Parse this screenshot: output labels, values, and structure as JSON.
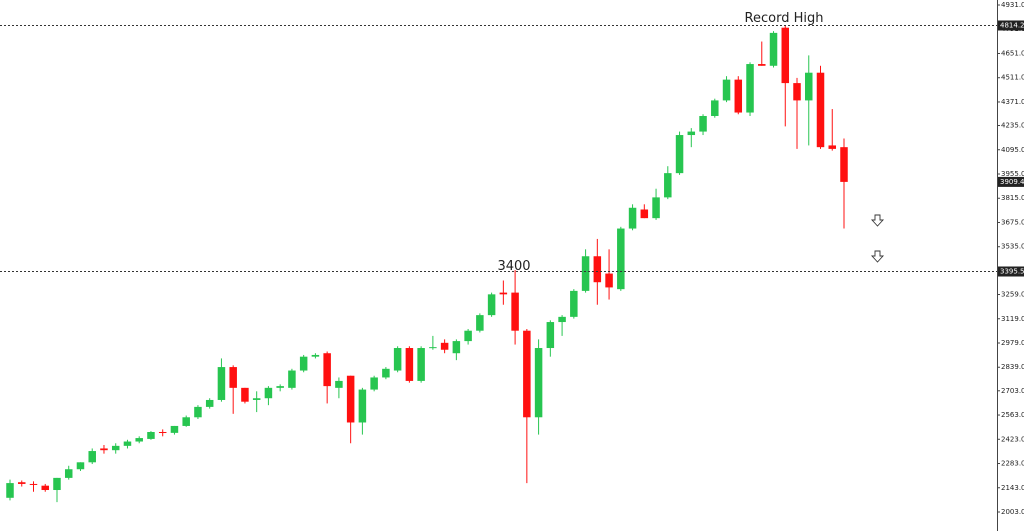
{
  "chart_data": {
    "type": "candlestick",
    "up_color": "#27c550",
    "down_color": "#ff1010",
    "ylim": [
      2003,
      4931
    ],
    "yticks": [
      {
        "value": 2003,
        "label": "2003.0"
      },
      {
        "value": 2143,
        "label": "2143.0"
      },
      {
        "value": 2283,
        "label": "2283.0"
      },
      {
        "value": 2423,
        "label": "2423.0"
      },
      {
        "value": 2563,
        "label": "2563.0"
      },
      {
        "value": 2703,
        "label": "2703.0"
      },
      {
        "value": 2839,
        "label": "2839.0"
      },
      {
        "value": 2979,
        "label": "2979.0"
      },
      {
        "value": 3119,
        "label": "3119.0"
      },
      {
        "value": 3259,
        "label": "3259.0"
      },
      {
        "value": 3535,
        "label": "3535.0"
      },
      {
        "value": 3675,
        "label": "3675.0"
      },
      {
        "value": 3815,
        "label": "3815.0"
      },
      {
        "value": 3955,
        "label": "3955.0"
      },
      {
        "value": 4095,
        "label": "4095.0"
      },
      {
        "value": 4235,
        "label": "4235.0"
      },
      {
        "value": 4371,
        "label": "4371.0"
      },
      {
        "value": 4511,
        "label": "4511.0"
      },
      {
        "value": 4651,
        "label": "4651.0"
      },
      {
        "value": 4791,
        "label": "4791.0"
      },
      {
        "value": 4931,
        "label": "4931.0"
      }
    ],
    "levels": [
      4814.2,
      3395.5
    ],
    "last_price": 3909.4,
    "annotations": [
      "Record High",
      "3400"
    ],
    "open": [
      2085,
      2175,
      2165,
      2155,
      2130,
      2200,
      2250,
      2290,
      2370,
      2360,
      2385,
      2410,
      2425,
      2465,
      2460,
      2500,
      2550,
      2610,
      2650,
      2840,
      2720,
      2650,
      2660,
      2720,
      2720,
      2820,
      2900,
      2920,
      2720,
      2790,
      2520,
      2710,
      2780,
      2820,
      2950,
      2760,
      2950,
      2980,
      2920,
      2990,
      3050,
      3140,
      3270,
      3270,
      3050,
      2550,
      2950,
      3100,
      3130,
      3280,
      3480,
      3380,
      3290,
      3640,
      3750,
      3700,
      3820,
      3960,
      4180,
      4200,
      4290,
      4380,
      4500,
      4310,
      4590,
      4580,
      4800,
      4480,
      4380,
      4540,
      4120,
      4110
    ],
    "high": [
      2190,
      2185,
      2180,
      2165,
      2200,
      2270,
      2290,
      2370,
      2390,
      2400,
      2420,
      2440,
      2470,
      2480,
      2500,
      2560,
      2620,
      2660,
      2890,
      2850,
      2720,
      2700,
      2730,
      2740,
      2830,
      2910,
      2920,
      2930,
      2780,
      2790,
      2720,
      2790,
      2840,
      2960,
      2960,
      2960,
      3020,
      3000,
      3000,
      3060,
      3150,
      3270,
      3340,
      3400,
      3060,
      3000,
      3110,
      3140,
      3290,
      3520,
      3580,
      3520,
      3650,
      3780,
      3780,
      3870,
      4000,
      4200,
      4220,
      4300,
      4390,
      4520,
      4520,
      4600,
      4720,
      4780,
      4814.2,
      4510,
      4640,
      4580,
      4330,
      4160
    ],
    "low": [
      2070,
      2150,
      2120,
      2120,
      2060,
      2190,
      2240,
      2280,
      2340,
      2340,
      2370,
      2400,
      2420,
      2440,
      2450,
      2495,
      2540,
      2600,
      2640,
      2570,
      2630,
      2580,
      2620,
      2700,
      2710,
      2810,
      2890,
      2630,
      2660,
      2400,
      2450,
      2700,
      2770,
      2810,
      2750,
      2750,
      2940,
      2920,
      2880,
      2970,
      3040,
      3130,
      3200,
      2970,
      2170,
      2450,
      2900,
      3020,
      3120,
      3270,
      3200,
      3230,
      3280,
      3630,
      3700,
      3690,
      3810,
      3950,
      4110,
      4180,
      4280,
      4370,
      4300,
      4290,
      4580,
      4570,
      4230,
      4100,
      4120,
      4100,
      4090,
      3640
    ],
    "close": [
      2170,
      2165,
      2160,
      2130,
      2200,
      2250,
      2290,
      2355,
      2360,
      2385,
      2410,
      2430,
      2465,
      2460,
      2500,
      2550,
      2610,
      2650,
      2840,
      2720,
      2640,
      2660,
      2720,
      2730,
      2820,
      2900,
      2910,
      2730,
      2760,
      2520,
      2710,
      2780,
      2830,
      2950,
      2760,
      2950,
      2955,
      2940,
      2990,
      3050,
      3140,
      3260,
      3260,
      3050,
      2550,
      2950,
      3100,
      3130,
      3280,
      3480,
      3330,
      3300,
      3640,
      3760,
      3700,
      3820,
      3960,
      4180,
      4200,
      4290,
      4380,
      4500,
      4310,
      4590,
      4580,
      4770,
      4480,
      4380,
      4540,
      4110,
      4100,
      3909.4
    ]
  }
}
